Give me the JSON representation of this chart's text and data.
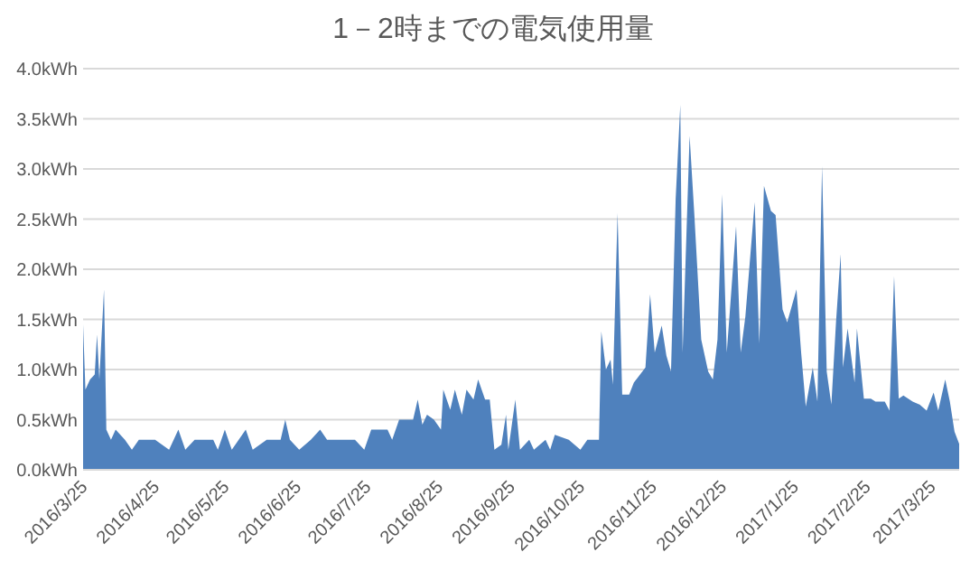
{
  "chart_data": {
    "type": "area",
    "title": "1－2時までの電気使用量",
    "x": [
      "2016-03-25",
      "2016-03-26",
      "2016-03-28",
      "2016-03-30",
      "2016-03-31",
      "2016-04-01",
      "2016-04-03",
      "2016-04-04",
      "2016-04-06",
      "2016-04-08",
      "2016-04-12",
      "2016-04-15",
      "2016-04-18",
      "2016-04-25",
      "2016-05-01",
      "2016-05-05",
      "2016-05-08",
      "2016-05-12",
      "2016-05-20",
      "2016-05-22",
      "2016-05-25",
      "2016-05-28",
      "2016-06-03",
      "2016-06-06",
      "2016-06-12",
      "2016-06-18",
      "2016-06-20",
      "2016-06-22",
      "2016-06-26",
      "2016-07-01",
      "2016-07-05",
      "2016-07-08",
      "2016-07-20",
      "2016-07-24",
      "2016-07-27",
      "2016-08-03",
      "2016-08-05",
      "2016-08-08",
      "2016-08-14",
      "2016-08-16",
      "2016-08-18",
      "2016-08-20",
      "2016-08-23",
      "2016-08-26",
      "2016-08-27",
      "2016-08-30",
      "2016-09-01",
      "2016-09-04",
      "2016-09-06",
      "2016-09-09",
      "2016-09-11",
      "2016-09-14",
      "2016-09-16",
      "2016-09-18",
      "2016-09-21",
      "2016-09-23",
      "2016-09-24",
      "2016-09-27",
      "2016-09-29",
      "2016-10-03",
      "2016-10-05",
      "2016-10-10",
      "2016-10-12",
      "2016-10-14",
      "2016-10-20",
      "2016-10-25",
      "2016-10-28",
      "2016-11-02",
      "2016-11-03",
      "2016-11-05",
      "2016-11-07",
      "2016-11-08",
      "2016-11-10",
      "2016-11-12",
      "2016-11-15",
      "2016-11-17",
      "2016-11-20",
      "2016-11-22",
      "2016-11-24",
      "2016-11-26",
      "2016-11-29",
      "2016-12-01",
      "2016-12-03",
      "2016-12-05",
      "2016-12-07",
      "2016-12-08",
      "2016-12-11",
      "2016-12-13",
      "2016-12-16",
      "2016-12-19",
      "2016-12-21",
      "2016-12-23",
      "2016-12-25",
      "2016-12-27",
      "2016-12-31",
      "2017-01-02",
      "2017-01-04",
      "2017-01-08",
      "2017-01-10",
      "2017-01-12",
      "2017-01-15",
      "2017-01-17",
      "2017-01-20",
      "2017-01-22",
      "2017-01-26",
      "2017-01-28",
      "2017-01-30",
      "2017-02-02",
      "2017-02-04",
      "2017-02-06",
      "2017-02-08",
      "2017-02-10",
      "2017-02-12",
      "2017-02-14",
      "2017-02-15",
      "2017-02-17",
      "2017-02-20",
      "2017-02-21",
      "2017-02-24",
      "2017-02-27",
      "2017-03-01",
      "2017-03-05",
      "2017-03-07",
      "2017-03-09",
      "2017-03-11",
      "2017-03-13",
      "2017-03-17",
      "2017-03-20",
      "2017-03-23",
      "2017-03-26",
      "2017-03-28",
      "2017-03-31",
      "2017-04-02",
      "2017-04-04",
      "2017-04-06"
    ],
    "series": [
      {
        "color": "#4f81bd",
        "values": [
          1.45,
          0.8,
          0.9,
          0.95,
          1.35,
          0.9,
          1.8,
          0.4,
          0.3,
          0.4,
          0.3,
          0.2,
          0.3,
          0.3,
          0.2,
          0.4,
          0.2,
          0.3,
          0.3,
          0.2,
          0.4,
          0.2,
          0.4,
          0.2,
          0.3,
          0.3,
          0.5,
          0.3,
          0.2,
          0.3,
          0.4,
          0.3,
          0.3,
          0.2,
          0.4,
          0.4,
          0.3,
          0.5,
          0.5,
          0.7,
          0.45,
          0.55,
          0.5,
          0.4,
          0.8,
          0.6,
          0.8,
          0.55,
          0.8,
          0.7,
          0.9,
          0.7,
          0.7,
          0.2,
          0.25,
          0.55,
          0.2,
          0.7,
          0.2,
          0.3,
          0.2,
          0.3,
          0.2,
          0.35,
          0.3,
          0.2,
          0.3,
          0.3,
          1.38,
          1.0,
          1.1,
          0.85,
          2.56,
          0.75,
          0.75,
          0.87,
          0.96,
          1.02,
          1.75,
          1.17,
          1.44,
          1.14,
          0.98,
          2.7,
          3.64,
          1.17,
          3.33,
          2.56,
          1.3,
          0.98,
          0.9,
          1.3,
          2.75,
          1.17,
          2.43,
          1.17,
          1.53,
          2.67,
          1.26,
          2.83,
          2.58,
          2.54,
          1.6,
          1.47,
          1.8,
          1.17,
          0.63,
          1.02,
          0.68,
          3.03,
          0.98,
          0.65,
          1.47,
          2.15,
          1.02,
          1.41,
          0.87,
          1.41,
          0.71,
          0.71,
          0.68,
          0.68,
          0.59,
          1.93,
          0.71,
          0.74,
          0.68,
          0.65,
          0.59,
          0.77,
          0.59,
          0.9,
          0.68,
          0.38,
          0.26
        ]
      }
    ],
    "xlim": [
      "2016-03-25",
      "2017-04-06"
    ],
    "xticks": [
      {
        "value": "2016-03-25",
        "label": "2016/3/25"
      },
      {
        "value": "2016-04-25",
        "label": "2016/4/25"
      },
      {
        "value": "2016-05-25",
        "label": "2016/5/25"
      },
      {
        "value": "2016-06-25",
        "label": "2016/6/25"
      },
      {
        "value": "2016-07-25",
        "label": "2016/7/25"
      },
      {
        "value": "2016-08-25",
        "label": "2016/8/25"
      },
      {
        "value": "2016-09-25",
        "label": "2016/9/25"
      },
      {
        "value": "2016-10-25",
        "label": "2016/10/25"
      },
      {
        "value": "2016-11-25",
        "label": "2016/11/25"
      },
      {
        "value": "2016-12-25",
        "label": "2016/12/25"
      },
      {
        "value": "2017-01-25",
        "label": "2017/1/25"
      },
      {
        "value": "2017-02-25",
        "label": "2017/2/25"
      },
      {
        "value": "2017-03-25",
        "label": "2017/3/25"
      }
    ],
    "ylim": [
      0,
      4
    ],
    "yticks": [
      {
        "value": 0,
        "label": "0.0kWh"
      },
      {
        "value": 0.5,
        "label": "0.5kWh"
      },
      {
        "value": 1,
        "label": "1.0kWh"
      },
      {
        "value": 1.5,
        "label": "1.5kWh"
      },
      {
        "value": 2,
        "label": "2.0kWh"
      },
      {
        "value": 2.5,
        "label": "2.5kWh"
      },
      {
        "value": 3,
        "label": "3.0kWh"
      },
      {
        "value": 3.5,
        "label": "3.5kWh"
      },
      {
        "value": 4,
        "label": "4.0kWh"
      }
    ],
    "grid": "y"
  }
}
